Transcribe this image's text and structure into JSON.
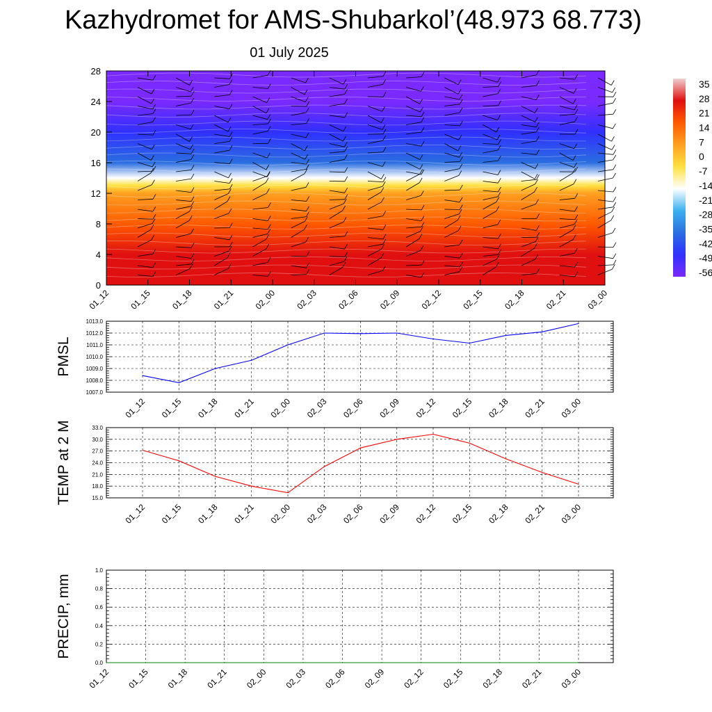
{
  "header": {
    "title": "Kazhydromet for AMS-Shubarkol’(48.973 68.773)",
    "date": "01 July 2025"
  },
  "colorbar": {
    "labels": [
      "35",
      "28",
      "21",
      "14",
      "7",
      "0",
      "-7",
      "-14",
      "-21",
      "-28",
      "-35",
      "-42",
      "-49",
      "-56"
    ],
    "stops": [
      "#f0d0d0",
      "#e01010",
      "#ff5a00",
      "#ffa020",
      "#ffe040",
      "#ffffff",
      "#3bb0f0",
      "#2a6ee0",
      "#3030ff",
      "#7a2aff"
    ]
  },
  "chart_data": [
    {
      "type": "heatmap",
      "name": "profile",
      "title": "",
      "xlabel": "",
      "ylabel": "",
      "y_ticks": [
        "0",
        "4",
        "8",
        "12",
        "16",
        "20",
        "24",
        "28"
      ],
      "ylim": [
        0,
        28
      ],
      "x_ticks": [
        "01_12",
        "01_15",
        "01_18",
        "01_21",
        "02_00",
        "02_03",
        "02_06",
        "02_09",
        "02_12",
        "02_15",
        "02_18",
        "02_21",
        "03_00"
      ],
      "levels": [
        0,
        4,
        8,
        12,
        13,
        14,
        16,
        20,
        24,
        28
      ],
      "values": [
        28,
        22,
        10,
        5,
        -7,
        -21,
        -35,
        -49,
        -56,
        -60
      ],
      "legend": "right",
      "grid": false
    },
    {
      "type": "line",
      "name": "pmsl",
      "ylabel": "PMSL",
      "ylim": [
        1007.0,
        1013.0
      ],
      "y_ticks": [
        "1007.0",
        "1008.0",
        "1009.0",
        "1010.0",
        "1011.0",
        "1012.0",
        "1013.0"
      ],
      "categories": [
        "01_12",
        "01_15",
        "01_18",
        "01_21",
        "02_00",
        "02_03",
        "02_06",
        "02_09",
        "02_12",
        "02_15",
        "02_18",
        "02_21",
        "03_00"
      ],
      "values": [
        1008.4,
        1007.8,
        1009.0,
        1009.7,
        1011.0,
        1012.0,
        1011.95,
        1012.0,
        1011.5,
        1011.15,
        1011.8,
        1012.1,
        1012.8
      ],
      "color": "#0000ff",
      "grid": true
    },
    {
      "type": "line",
      "name": "temp",
      "ylabel": "TEMP at 2 M",
      "ylim": [
        15.0,
        33.0
      ],
      "y_ticks": [
        "15.0",
        "18.0",
        "21.0",
        "24.0",
        "27.0",
        "30.0",
        "33.0"
      ],
      "categories": [
        "01_12",
        "01_15",
        "01_18",
        "01_21",
        "02_00",
        "02_03",
        "02_06",
        "02_09",
        "02_12",
        "02_15",
        "02_18",
        "02_21",
        "03_00"
      ],
      "values": [
        27.2,
        24.5,
        20.5,
        18.0,
        16.3,
        23.0,
        27.8,
        30.0,
        31.3,
        29.0,
        25.0,
        21.5,
        18.5
      ],
      "color": "#ff0000",
      "grid": true
    },
    {
      "type": "line",
      "name": "precip",
      "ylabel": "PRECIP, mm",
      "ylim": [
        0.0,
        1.0
      ],
      "y_ticks": [
        "0.0",
        "0.2",
        "0.4",
        "0.6",
        "0.8",
        "1.0"
      ],
      "categories": [
        "01_12",
        "01_15",
        "01_18",
        "01_21",
        "02_00",
        "02_03",
        "02_06",
        "02_09",
        "02_12",
        "02_15",
        "02_18",
        "02_21",
        "03_00"
      ],
      "values": [
        0,
        0,
        0,
        0,
        0,
        0,
        0,
        0,
        0,
        0,
        0,
        0,
        0
      ],
      "color": "#008000",
      "grid": true
    }
  ]
}
